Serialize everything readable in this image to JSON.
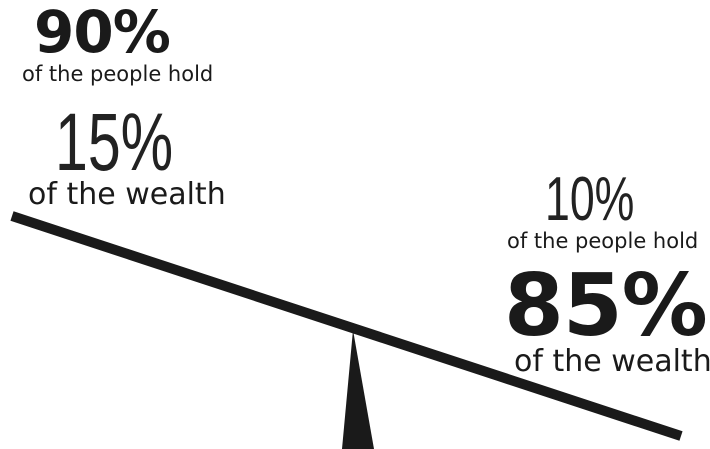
{
  "left_group": {
    "top_percent": "90%",
    "top_caption": "of the people hold",
    "bottom_percent": "15%",
    "bottom_caption": "of the wealth"
  },
  "right_group": {
    "top_percent": "10%",
    "top_caption": "of the people hold",
    "bottom_percent": "85%",
    "bottom_caption": "of the wealth"
  },
  "colors": {
    "ink": "#1a1a1a",
    "background": "#ffffff"
  }
}
